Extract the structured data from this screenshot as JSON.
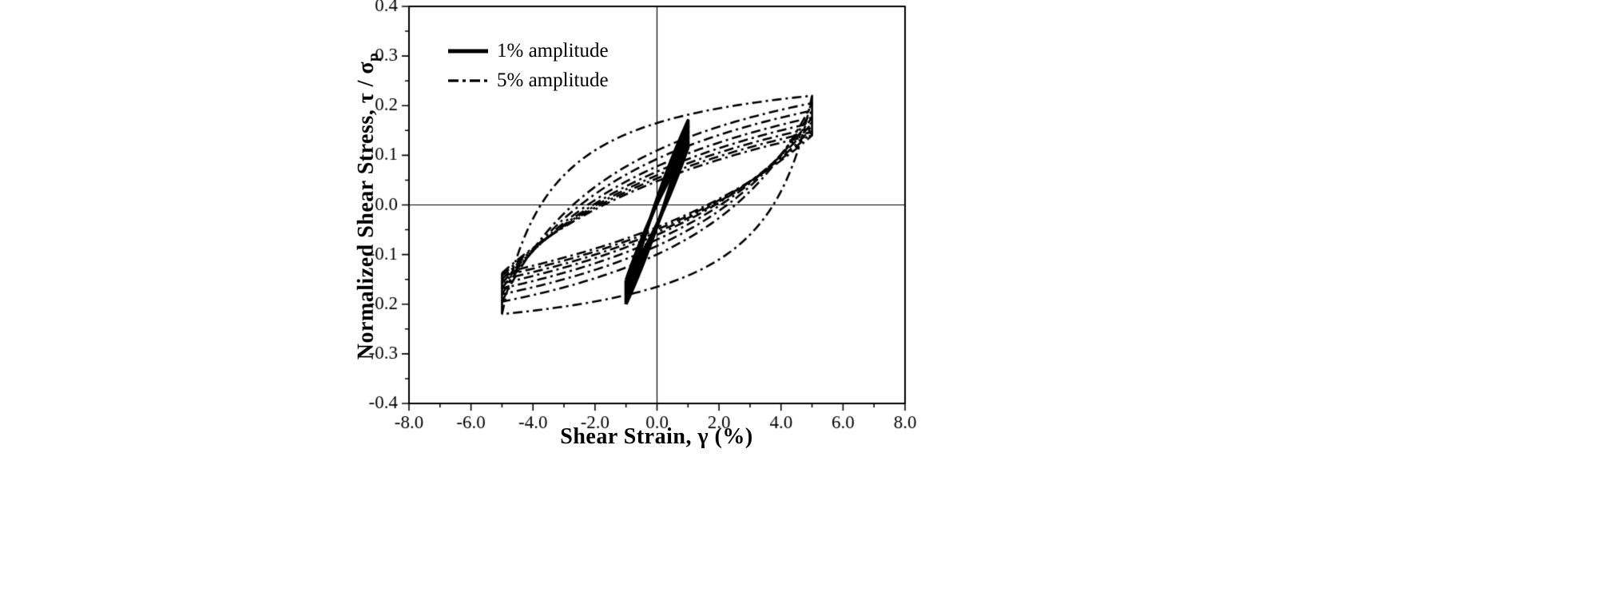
{
  "figure": {
    "background_color": "#ffffff",
    "line_color": "#000000"
  },
  "axes": {
    "x_title": "Shear Strain, γ (%)",
    "y_title_main": "Normalized Shear Stress, τ / σ",
    "y_title_sub": "p"
  },
  "legend": {
    "entries": [
      {
        "label": "1% amplitude",
        "style": "solid"
      },
      {
        "label": "5% amplitude",
        "style": "dashdot"
      }
    ]
  },
  "chart_data": {
    "type": "line",
    "title": "",
    "xlabel": "Shear Strain, γ (%)",
    "ylabel": "Normalized Shear Stress, τ / σp",
    "xlim": [
      -8.0,
      8.0
    ],
    "ylim": [
      -0.4,
      0.4
    ],
    "xticks": [
      -8,
      -6,
      -4,
      -2,
      0,
      2,
      4,
      6,
      8
    ],
    "yticks": [
      -0.4,
      -0.3,
      -0.2,
      -0.1,
      0,
      0.1,
      0.2,
      0.3,
      0.4
    ],
    "x_minor_step": 1.0,
    "y_minor_step": 0.05,
    "grid": false,
    "zero_lines": true,
    "legend_position": "top-left-inside",
    "series": [
      {
        "name": "1% amplitude",
        "style": "solid",
        "line_width": 4,
        "amplitude_percent": 1.0,
        "curvature": 0.35,
        "cycles": [
          {
            "top": 0.17,
            "bottom": -0.2
          },
          {
            "top": 0.158,
            "bottom": -0.192
          },
          {
            "top": 0.147,
            "bottom": -0.182
          },
          {
            "top": 0.136,
            "bottom": -0.172
          },
          {
            "top": 0.126,
            "bottom": -0.162
          },
          {
            "top": 0.116,
            "bottom": -0.152
          }
        ]
      },
      {
        "name": "5% amplitude",
        "style": "dashdot",
        "line_width": 2.6,
        "amplitude_percent": 5.0,
        "curvature": 1.4,
        "cycles": [
          {
            "top": 0.22,
            "bottom": -0.22,
            "curvature": 6.0
          },
          {
            "top": 0.205,
            "bottom": -0.195,
            "curvature": 2.2
          },
          {
            "top": 0.19,
            "bottom": -0.18,
            "curvature": 1.8
          },
          {
            "top": 0.176,
            "bottom": -0.168,
            "curvature": 1.5
          },
          {
            "top": 0.165,
            "bottom": -0.158,
            "curvature": 1.3
          },
          {
            "top": 0.155,
            "bottom": -0.15,
            "curvature": 1.2
          },
          {
            "top": 0.147,
            "bottom": -0.143,
            "curvature": 1.1
          },
          {
            "top": 0.14,
            "bottom": -0.137,
            "curvature": 1.0
          }
        ]
      }
    ]
  }
}
